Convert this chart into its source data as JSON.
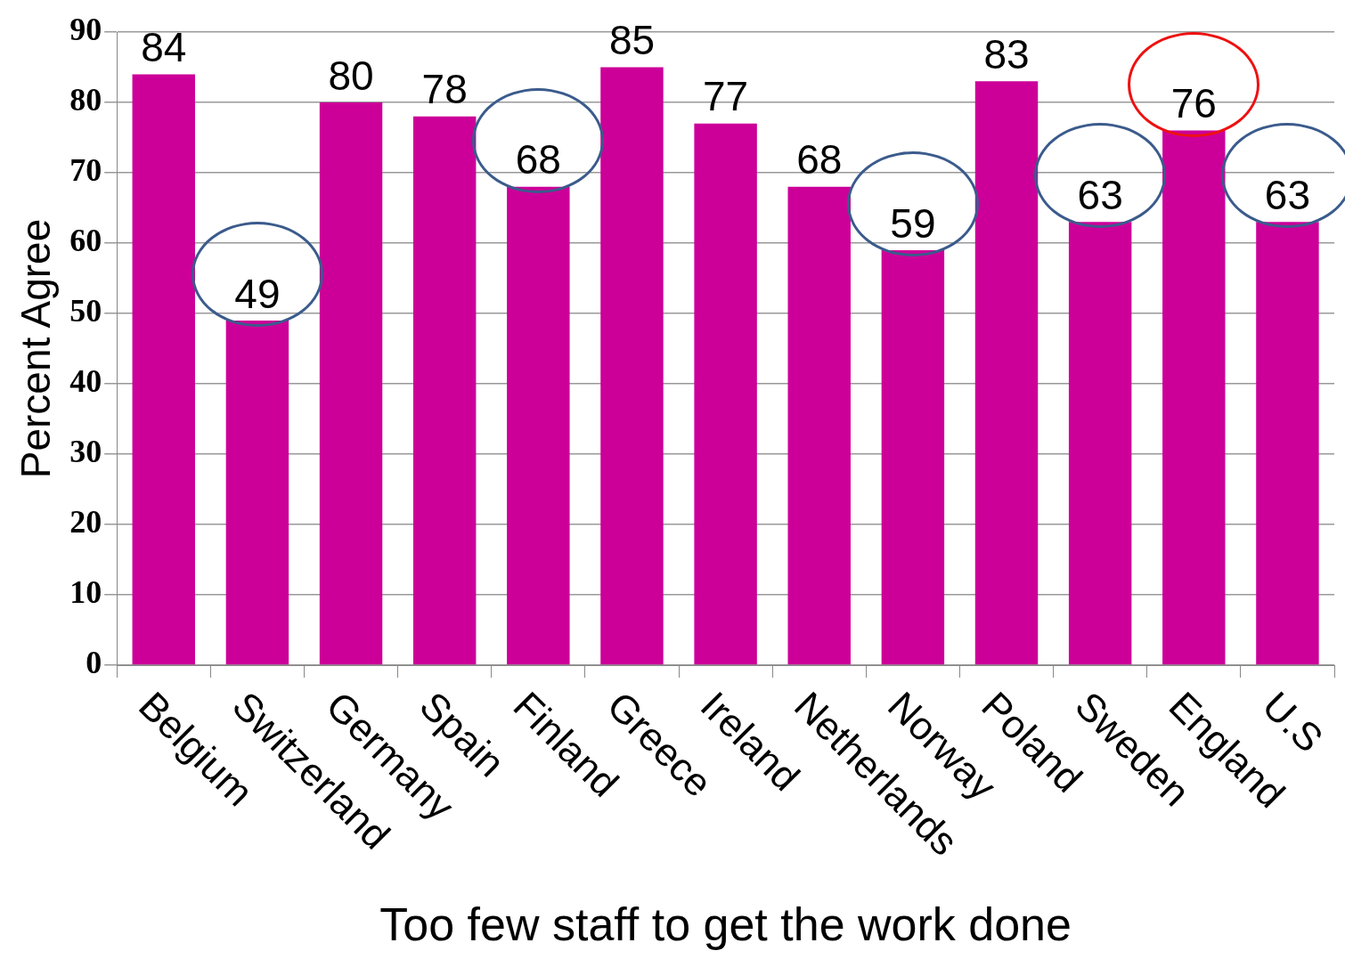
{
  "chart_data": {
    "type": "bar",
    "xlabel": "Too few staff to get the work done",
    "ylabel": "Percent Agree",
    "categories": [
      "Belgium",
      "Switzerland",
      "Germany",
      "Spain",
      "Finland",
      "Greece",
      "Ireland",
      "Netherlands",
      "Norway",
      "Poland",
      "Sweden",
      "England",
      "U.S"
    ],
    "values": [
      84,
      49,
      80,
      78,
      68,
      85,
      77,
      68,
      59,
      83,
      63,
      76,
      63
    ],
    "color": "#cc0099",
    "ylim": [
      0,
      90
    ],
    "yticks": [
      0,
      10,
      20,
      30,
      40,
      50,
      60,
      70,
      80,
      90
    ],
    "grid": "y",
    "data_labels": true
  }
}
